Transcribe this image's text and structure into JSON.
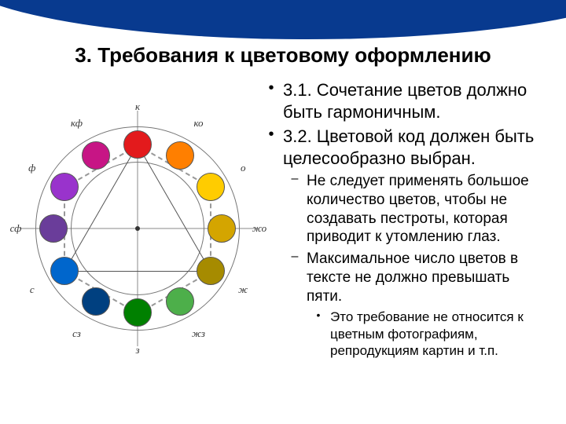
{
  "title": "3. Требования к цветовому оформлению",
  "bullets": {
    "b1": "3.1. Сочетание цветов должно быть гармоничным.",
    "b2": "3.2. Цветовой код должен быть целесообразно выбран.",
    "s1": "Не следует применять большое количество цветов, чтобы не создавать пестроты, которая приводит к утомлению глаз.",
    "s2": "Максимальное число цветов в тексте не должно превышать пяти.",
    "t1": "Это требование не относится к цветным фотографиям, репродукциям картин и т.п."
  },
  "wheel": {
    "ring_color": "#777777",
    "hex_color": "#999999",
    "tri_color": "#555555",
    "colors": [
      {
        "name": "к",
        "hex": "#e31a1c",
        "angle": -90
      },
      {
        "name": "ко",
        "hex": "#ff7f00",
        "angle": -60
      },
      {
        "name": "о",
        "hex": "#ffcc00",
        "angle": -30
      },
      {
        "name": "жо",
        "hex": "#d4a500",
        "angle": 0
      },
      {
        "name": "ж",
        "hex": "#a68b00",
        "angle": 30
      },
      {
        "name": "жз",
        "hex": "#4daf4a",
        "angle": 60
      },
      {
        "name": "з",
        "hex": "#008000",
        "angle": 90
      },
      {
        "name": "сз",
        "hex": "#004080",
        "angle": 120
      },
      {
        "name": "с",
        "hex": "#0066cc",
        "angle": 150
      },
      {
        "name": "сф",
        "hex": "#6a3d9a",
        "angle": 180
      },
      {
        "name": "ф",
        "hex": "#9933cc",
        "angle": 210
      },
      {
        "name": "кф",
        "hex": "#c71585",
        "angle": 240
      }
    ]
  }
}
